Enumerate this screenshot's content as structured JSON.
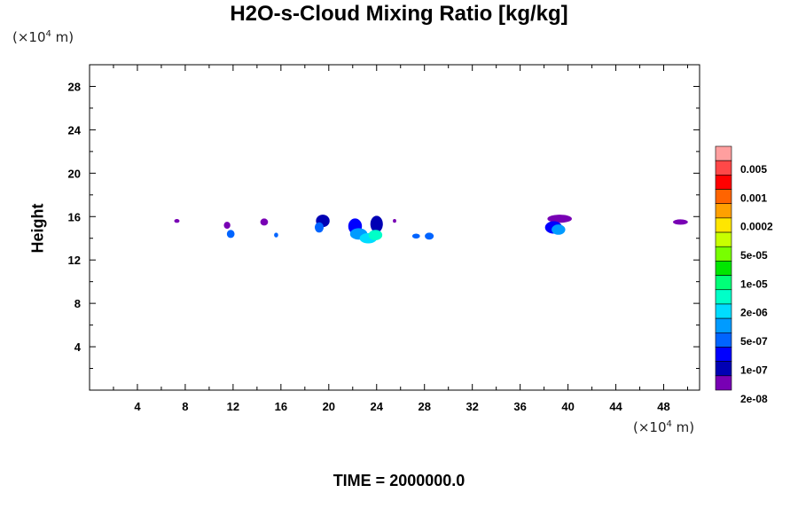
{
  "chart_data": {
    "type": "heatmap",
    "title": "H2O-s-Cloud Mixing Ratio [kg/kg]",
    "ylabel": "Height",
    "x_unit": "(×10⁴ m)",
    "y_unit": "(×10⁴ m)",
    "x_unit_parts": {
      "pre": "(×10",
      "exp": "4",
      "post": " m)"
    },
    "y_unit_parts": {
      "pre": "(×10",
      "exp": "4",
      "post": " m)"
    },
    "xlim": [
      0,
      51
    ],
    "ylim": [
      0,
      30
    ],
    "x_ticks": [
      4,
      8,
      12,
      16,
      20,
      24,
      28,
      32,
      36,
      40,
      44,
      48
    ],
    "y_ticks": [
      4,
      8,
      12,
      16,
      20,
      24,
      28
    ],
    "colorbar": {
      "labels": [
        "0.005",
        "0.001",
        "0.0002",
        "5e-05",
        "1e-05",
        "2e-06",
        "5e-07",
        "1e-07",
        "2e-08"
      ],
      "colors": [
        "#ff9f9f",
        "#ff4848",
        "#ff0000",
        "#ff6400",
        "#ffa000",
        "#ffe600",
        "#c8ff00",
        "#78ff00",
        "#00e600",
        "#00ff78",
        "#00ffc8",
        "#00dcff",
        "#009bff",
        "#0064ff",
        "#0000ff",
        "#0000b4",
        "#7800b4"
      ]
    },
    "cloud_patches": [
      {
        "x": 7.3,
        "y": 15.6,
        "rx": 0.2,
        "ry": 0.15,
        "color": "#7800b4"
      },
      {
        "x": 11.5,
        "y": 15.2,
        "rx": 0.25,
        "ry": 0.3,
        "color": "#7800b4"
      },
      {
        "x": 11.8,
        "y": 14.4,
        "rx": 0.3,
        "ry": 0.35,
        "color": "#0064ff"
      },
      {
        "x": 14.6,
        "y": 15.5,
        "rx": 0.3,
        "ry": 0.3,
        "color": "#7800b4"
      },
      {
        "x": 15.6,
        "y": 14.3,
        "rx": 0.15,
        "ry": 0.2,
        "color": "#0064ff"
      },
      {
        "x": 19.5,
        "y": 15.6,
        "rx": 0.55,
        "ry": 0.55,
        "color": "#0000b4"
      },
      {
        "x": 19.2,
        "y": 15.0,
        "rx": 0.35,
        "ry": 0.45,
        "color": "#0064ff"
      },
      {
        "x": 22.2,
        "y": 15.1,
        "rx": 0.55,
        "ry": 0.7,
        "color": "#0000ff"
      },
      {
        "x": 22.5,
        "y": 14.4,
        "rx": 0.7,
        "ry": 0.5,
        "color": "#009bff"
      },
      {
        "x": 23.3,
        "y": 14.0,
        "rx": 0.7,
        "ry": 0.45,
        "color": "#00dcff"
      },
      {
        "x": 24.0,
        "y": 15.3,
        "rx": 0.5,
        "ry": 0.75,
        "color": "#0000b4"
      },
      {
        "x": 23.9,
        "y": 14.3,
        "rx": 0.55,
        "ry": 0.45,
        "color": "#00ffc8"
      },
      {
        "x": 25.5,
        "y": 15.6,
        "rx": 0.12,
        "ry": 0.15,
        "color": "#7800b4"
      },
      {
        "x": 27.3,
        "y": 14.2,
        "rx": 0.3,
        "ry": 0.2,
        "color": "#0064ff"
      },
      {
        "x": 28.4,
        "y": 14.2,
        "rx": 0.35,
        "ry": 0.3,
        "color": "#0064ff"
      },
      {
        "x": 39.3,
        "y": 15.8,
        "rx": 1.0,
        "ry": 0.35,
        "color": "#7800b4"
      },
      {
        "x": 38.8,
        "y": 15.0,
        "rx": 0.7,
        "ry": 0.55,
        "color": "#0000ff"
      },
      {
        "x": 39.2,
        "y": 14.8,
        "rx": 0.55,
        "ry": 0.45,
        "color": "#009bff"
      },
      {
        "x": 49.4,
        "y": 15.5,
        "rx": 0.6,
        "ry": 0.22,
        "color": "#7800b4"
      }
    ]
  },
  "footer": {
    "time_text": "TIME = 2000000.0"
  }
}
